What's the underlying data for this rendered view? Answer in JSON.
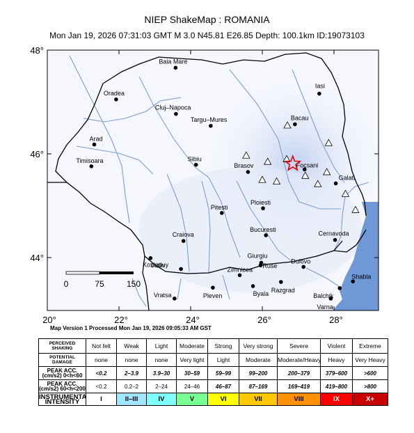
{
  "header": {
    "title": "NIEP ShakeMap : ROMANIA",
    "subtitle": "Mon Jan 19, 2026 07:31:03 GMT   M 3.0   N45.81 E26.85   Depth: 100.1km   ID:19073103"
  },
  "map": {
    "lat_labels": [
      "48°",
      "46°",
      "44°"
    ],
    "lon_labels": [
      "20°",
      "22°",
      "24°",
      "26°",
      "28°"
    ],
    "cities": [
      {
        "name": "Baia Mare",
        "lon": 23.58,
        "lat": 47.66
      },
      {
        "name": "Oradea",
        "lon": 21.92,
        "lat": 47.05
      },
      {
        "name": "Iasi",
        "lon": 27.59,
        "lat": 47.16
      },
      {
        "name": "Cluj–Napoca",
        "lon": 23.59,
        "lat": 46.77
      },
      {
        "name": "Targu–Mures",
        "lon": 24.56,
        "lat": 46.54
      },
      {
        "name": "Bacau",
        "lon": 26.91,
        "lat": 46.57
      },
      {
        "name": "Arad",
        "lon": 21.31,
        "lat": 46.18
      },
      {
        "name": "Timisoara",
        "lon": 21.23,
        "lat": 45.76
      },
      {
        "name": "Sibiu",
        "lon": 24.15,
        "lat": 45.79
      },
      {
        "name": "Brasov",
        "lon": 25.6,
        "lat": 45.65
      },
      {
        "name": "Focsani",
        "lon": 27.18,
        "lat": 45.7
      },
      {
        "name": "Galati",
        "lon": 28.05,
        "lat": 45.43
      },
      {
        "name": "Ploiesti",
        "lon": 26.02,
        "lat": 44.95
      },
      {
        "name": "Pitesti",
        "lon": 24.87,
        "lat": 44.86
      },
      {
        "name": "Craiova",
        "lon": 23.8,
        "lat": 44.32
      },
      {
        "name": "Bucuresti",
        "lon": 26.1,
        "lat": 44.43
      },
      {
        "name": "Cernavoda",
        "lon": 28.03,
        "lat": 44.34
      },
      {
        "name": "Giurgiu",
        "lon": 25.97,
        "lat": 43.9
      },
      {
        "name": "Zimnicea",
        "lon": 25.37,
        "lat": 43.66
      },
      {
        "name": "Ruse",
        "lon": 25.95,
        "lat": 43.85
      },
      {
        "name": "Dulovo",
        "lon": 27.15,
        "lat": 43.82
      },
      {
        "name": "Kozloduy",
        "lon": 23.73,
        "lat": 43.78
      },
      {
        "name": "Vidin",
        "lon": 22.88,
        "lat": 43.99
      },
      {
        "name": "Pleven",
        "lon": 24.62,
        "lat": 43.42
      },
      {
        "name": "Byala",
        "lon": 25.74,
        "lat": 43.45
      },
      {
        "name": "Razgrad",
        "lon": 26.52,
        "lat": 43.53
      },
      {
        "name": "Shabla",
        "lon": 28.53,
        "lat": 43.54
      },
      {
        "name": "Balchik",
        "lon": 28.16,
        "lat": 43.41
      },
      {
        "name": "Vratsa",
        "lon": 23.55,
        "lat": 43.21
      },
      {
        "name": "Varna",
        "lon": 27.91,
        "lat": 43.21
      }
    ],
    "stations": [
      {
        "lon": 26.7,
        "lat": 46.55
      },
      {
        "lon": 27.85,
        "lat": 46.21
      },
      {
        "lon": 25.55,
        "lat": 45.97
      },
      {
        "lon": 26.15,
        "lat": 45.85
      },
      {
        "lon": 26.68,
        "lat": 45.9
      },
      {
        "lon": 26.0,
        "lat": 45.5
      },
      {
        "lon": 26.4,
        "lat": 45.47
      },
      {
        "lon": 27.55,
        "lat": 45.42
      },
      {
        "lon": 27.8,
        "lat": 45.65
      },
      {
        "lon": 27.2,
        "lat": 45.58
      },
      {
        "lon": 28.32,
        "lat": 45.23
      },
      {
        "lon": 28.6,
        "lat": 44.92
      }
    ],
    "epicenter": {
      "lon": 26.85,
      "lat": 45.81
    },
    "scale_bar": {
      "labels": [
        "0",
        "75",
        "150"
      ],
      "unit": "km"
    },
    "colors": {
      "sea": "#6f98d6",
      "river": "#7a9fd6",
      "border": "#000000",
      "shake_light": "#e9eefb",
      "shake_mid": "#c3d2f0"
    }
  },
  "processed": "Map Version 1 Processed Mon Jan 19, 2026 09:05:33 AM GST",
  "legend": {
    "rows": [
      {
        "header": "PERCEIVED SHAKING",
        "cells": [
          "Not felt",
          "Weak",
          "Light",
          "Moderate",
          "Strong",
          "Very strong",
          "Severe",
          "Violent",
          "Extreme"
        ]
      },
      {
        "header": "POTENTIAL DAMAGE",
        "cells": [
          "none",
          "none",
          "none",
          "Very light",
          "Light",
          "Moderate",
          "Moderate/Heavy",
          "Heavy",
          "Very Heavy"
        ]
      },
      {
        "header": "PEAK ACC.(cm/s2) 0<h<60",
        "cells": [
          "<0.2",
          "2–3.9",
          "3.9–30",
          "30–59",
          "59–99",
          "99–200",
          "200–379",
          "379–600",
          ">600"
        ]
      },
      {
        "header": "PEAK ACC.(cm/s2) 60<h<200",
        "cells": [
          "<0.2",
          "0.2–2",
          "2–24",
          "24–46",
          "46–87",
          "87–169",
          "169–419",
          "419–800",
          ">800"
        ]
      },
      {
        "header": "INSTRUMENTAL INTENSITY",
        "cells": [
          "I",
          "II–III",
          "IV",
          "V",
          "VI",
          "VII",
          "VIII",
          "IX",
          "X+"
        ]
      }
    ],
    "intensity_colors": [
      "#ffffff",
      "#bfccff",
      "#a0e6ff",
      "#80ffff",
      "#7aff93",
      "#ffff00",
      "#ffc800",
      "#ff9100",
      "#ff0000",
      "#c80000"
    ]
  }
}
